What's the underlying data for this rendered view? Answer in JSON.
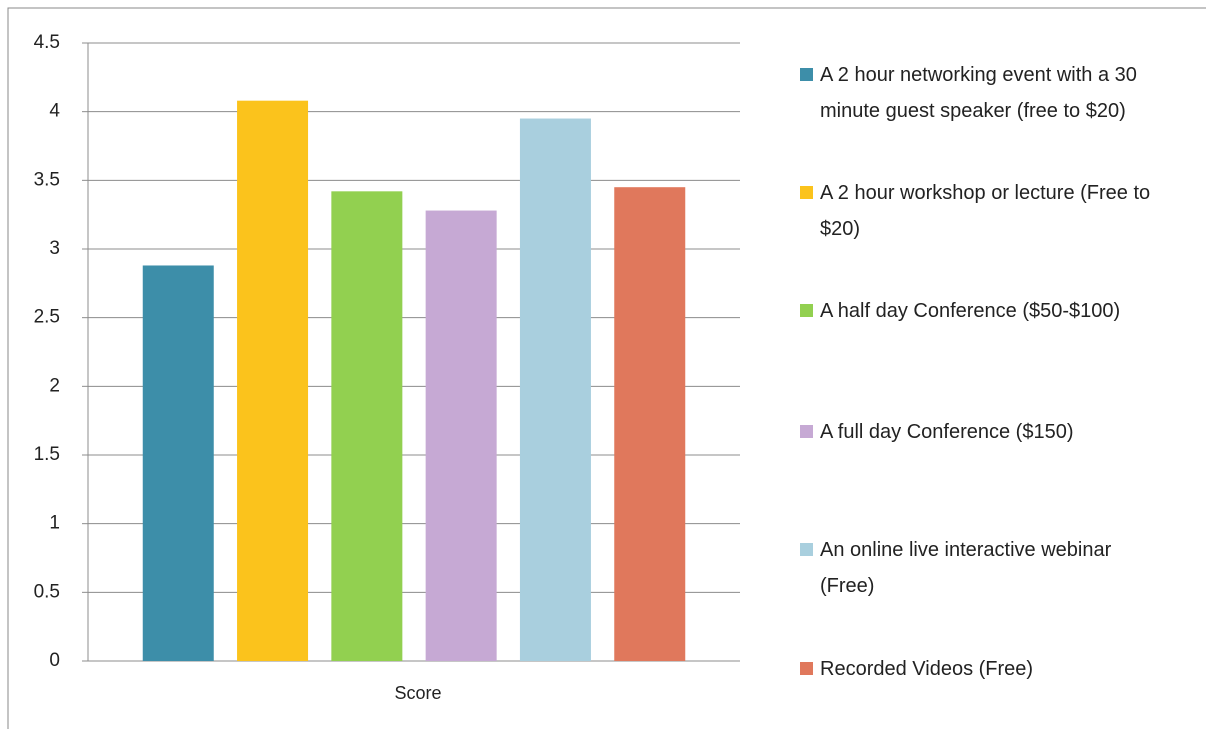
{
  "chart_data": {
    "type": "bar",
    "categories": [
      "Score"
    ],
    "series": [
      {
        "name": "A 2 hour networking event with a 30 minute guest speaker (free to $20)",
        "color": "#3d8ea9",
        "values": [
          2.88
        ]
      },
      {
        "name": "A 2 hour workshop or lecture (Free to $20)",
        "color": "#fbc31c",
        "values": [
          4.08
        ]
      },
      {
        "name": "A half day Conference ($50-$100)",
        "color": "#92d050",
        "values": [
          3.42
        ]
      },
      {
        "name": "A full day Conference ($150)",
        "color": "#c6a9d4",
        "values": [
          3.28
        ]
      },
      {
        "name": "An online live interactive webinar (Free)",
        "color": "#a9cfde",
        "values": [
          3.95
        ]
      },
      {
        "name": "Recorded Videos (Free)",
        "color": "#e0785c",
        "values": [
          3.45
        ]
      }
    ],
    "ylim": [
      0,
      4.5
    ],
    "yticks": [
      0,
      0.5,
      1,
      1.5,
      2,
      2.5,
      3,
      3.5,
      4,
      4.5
    ],
    "grid": true,
    "legend": "right"
  }
}
